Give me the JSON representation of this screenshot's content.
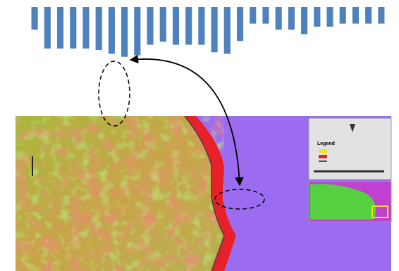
{
  "chart_data": {
    "type": "bar",
    "color": "#4f81bd",
    "ylim": [
      -70,
      0
    ],
    "values": [
      -30,
      -55,
      -55,
      -55,
      -55,
      -57,
      -62,
      -66,
      -64,
      -50,
      -46,
      -50,
      -50,
      -50,
      -60,
      -62,
      -45,
      -22,
      -22,
      -30,
      -30,
      -36,
      -26,
      -26,
      -22,
      -22,
      -22,
      -22
    ]
  },
  "map": {
    "legend_title": "Legend"
  }
}
